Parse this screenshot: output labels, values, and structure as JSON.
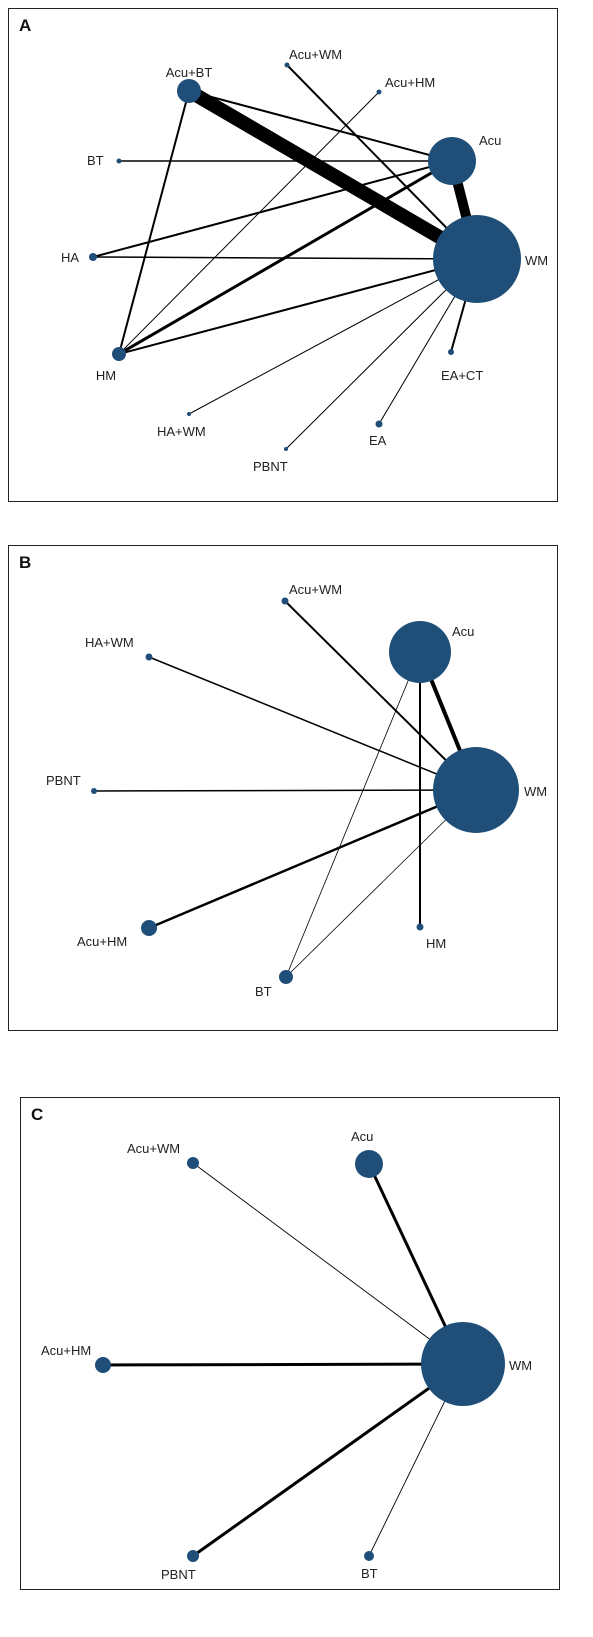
{
  "colors": {
    "node": "#1f4e79",
    "edge": "#000000",
    "border": "#222222",
    "text": "#222222"
  },
  "panels": [
    {
      "id": "A",
      "label": "A",
      "nodes": [
        {
          "id": "AcuBT",
          "label": "Acu+BT"
        },
        {
          "id": "AcuWM",
          "label": "Acu+WM"
        },
        {
          "id": "AcuHM",
          "label": "Acu+HM"
        },
        {
          "id": "Acu",
          "label": "Acu"
        },
        {
          "id": "BT",
          "label": "BT"
        },
        {
          "id": "HA",
          "label": "HA"
        },
        {
          "id": "WM",
          "label": "WM"
        },
        {
          "id": "HM",
          "label": "HM"
        },
        {
          "id": "EACT",
          "label": "EA+CT"
        },
        {
          "id": "HAWM",
          "label": "HA+WM"
        },
        {
          "id": "EA",
          "label": "EA"
        },
        {
          "id": "PBNT",
          "label": "PBNT"
        }
      ],
      "edges": [
        {
          "from": "AcuBT",
          "to": "WM"
        },
        {
          "from": "Acu",
          "to": "WM"
        },
        {
          "from": "AcuBT",
          "to": "Acu"
        },
        {
          "from": "AcuBT",
          "to": "HM"
        },
        {
          "from": "AcuWM",
          "to": "WM"
        },
        {
          "from": "AcuHM",
          "to": "HM"
        },
        {
          "from": "BT",
          "to": "Acu"
        },
        {
          "from": "HA",
          "to": "Acu"
        },
        {
          "from": "HA",
          "to": "WM"
        },
        {
          "from": "HM",
          "to": "Acu"
        },
        {
          "from": "HM",
          "to": "WM"
        },
        {
          "from": "HAWM",
          "to": "WM"
        },
        {
          "from": "PBNT",
          "to": "WM"
        },
        {
          "from": "EA",
          "to": "WM"
        },
        {
          "from": "EACT",
          "to": "WM"
        }
      ]
    },
    {
      "id": "B",
      "label": "B",
      "nodes": [
        {
          "id": "AcuWM",
          "label": "Acu+WM"
        },
        {
          "id": "Acu",
          "label": "Acu"
        },
        {
          "id": "HAWM",
          "label": "HA+WM"
        },
        {
          "id": "PBNT",
          "label": "PBNT"
        },
        {
          "id": "WM",
          "label": "WM"
        },
        {
          "id": "AcuHM",
          "label": "Acu+HM"
        },
        {
          "id": "HM",
          "label": "HM"
        },
        {
          "id": "BT",
          "label": "BT"
        }
      ],
      "edges": [
        {
          "from": "AcuWM",
          "to": "WM"
        },
        {
          "from": "HAWM",
          "to": "WM"
        },
        {
          "from": "PBNT",
          "to": "WM"
        },
        {
          "from": "AcuHM",
          "to": "WM"
        },
        {
          "from": "Acu",
          "to": "WM"
        },
        {
          "from": "Acu",
          "to": "HM"
        },
        {
          "from": "BT",
          "to": "Acu"
        },
        {
          "from": "BT",
          "to": "WM"
        }
      ]
    },
    {
      "id": "C",
      "label": "C",
      "nodes": [
        {
          "id": "AcuWM",
          "label": "Acu+WM"
        },
        {
          "id": "Acu",
          "label": "Acu"
        },
        {
          "id": "AcuHM",
          "label": "Acu+HM"
        },
        {
          "id": "WM",
          "label": "WM"
        },
        {
          "id": "PBNT",
          "label": "PBNT"
        },
        {
          "id": "BT",
          "label": "BT"
        }
      ],
      "edges": [
        {
          "from": "AcuWM",
          "to": "WM"
        },
        {
          "from": "Acu",
          "to": "WM"
        },
        {
          "from": "AcuHM",
          "to": "WM"
        },
        {
          "from": "PBNT",
          "to": "WM"
        },
        {
          "from": "BT",
          "to": "WM"
        }
      ]
    }
  ]
}
